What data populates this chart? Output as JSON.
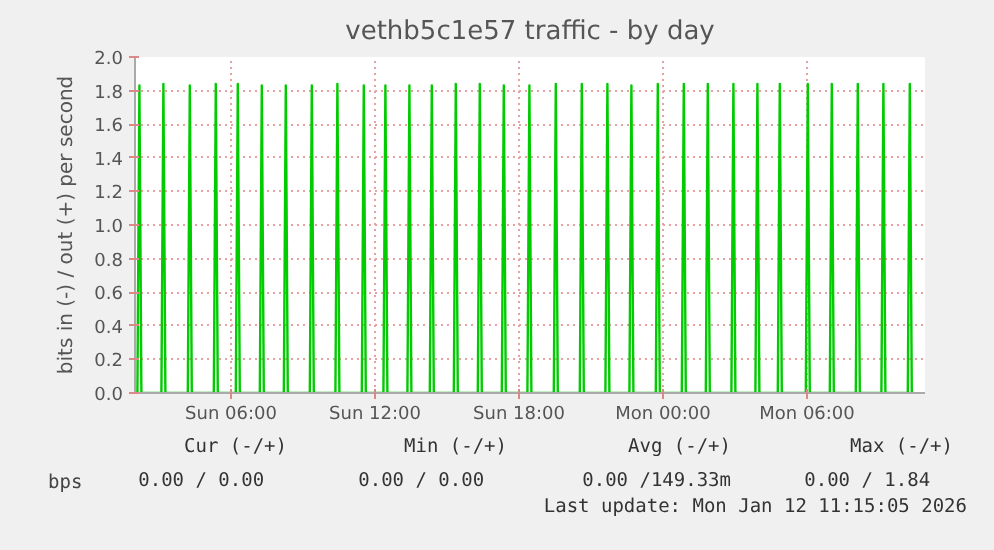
{
  "chart_data": {
    "type": "line",
    "title": "vethb5c1e57 traffic - by day",
    "ylabel": "bits in (-) / out (+) per second",
    "xlim": [
      "2026-01-11T02:00",
      "2026-01-12T10:55"
    ],
    "ylim": [
      0,
      2.0
    ],
    "xticks": [
      {
        "value": "2026-01-11T06:00",
        "label": "Sun 06:00"
      },
      {
        "value": "2026-01-11T12:00",
        "label": "Sun 12:00"
      },
      {
        "value": "2026-01-11T18:00",
        "label": "Sun 18:00"
      },
      {
        "value": "2026-01-12T00:00",
        "label": "Mon 00:00"
      },
      {
        "value": "2026-01-12T06:00",
        "label": "Mon 06:00"
      }
    ],
    "yticks": [
      {
        "value": 0,
        "label": "0.0"
      },
      {
        "value": 0.2,
        "label": "0.2"
      },
      {
        "value": 0.4,
        "label": "0.4"
      },
      {
        "value": 0.6,
        "label": "0.6"
      },
      {
        "value": 0.8,
        "label": "0.8"
      },
      {
        "value": 1.0,
        "label": "1.0"
      },
      {
        "value": 1.2,
        "label": "1.2"
      },
      {
        "value": 1.4,
        "label": "1.4"
      },
      {
        "value": 1.6,
        "label": "1.6"
      },
      {
        "value": 1.8,
        "label": "1.8"
      },
      {
        "value": 2.0,
        "label": "2.0"
      }
    ],
    "grid": true,
    "legend": "bottom left",
    "line_style": "solid",
    "series": [
      {
        "name": "bps",
        "color": "#00cc00",
        "x": [
          "2026-01-11T02:06",
          "2026-01-11T02:11",
          "2026-01-11T02:16",
          "2026-01-11T03:06",
          "2026-01-11T03:11",
          "2026-01-11T03:16",
          "2026-01-11T04:12",
          "2026-01-11T04:17",
          "2026-01-11T04:22",
          "2026-01-11T05:17",
          "2026-01-11T05:22",
          "2026-01-11T05:27",
          "2026-01-11T06:12",
          "2026-01-11T06:17",
          "2026-01-11T06:22",
          "2026-01-11T07:12",
          "2026-01-11T07:17",
          "2026-01-11T07:22",
          "2026-01-11T08:12",
          "2026-01-11T08:17",
          "2026-01-11T08:22",
          "2026-01-11T09:17",
          "2026-01-11T09:22",
          "2026-01-11T09:27",
          "2026-01-11T10:21",
          "2026-01-11T10:26",
          "2026-01-11T10:31",
          "2026-01-11T11:27",
          "2026-01-11T11:32",
          "2026-01-11T11:37",
          "2026-01-11T12:21",
          "2026-01-11T12:26",
          "2026-01-11T12:31",
          "2026-01-11T13:21",
          "2026-01-11T13:26",
          "2026-01-11T13:31",
          "2026-01-11T14:17",
          "2026-01-11T14:22",
          "2026-01-11T14:27",
          "2026-01-11T15:17",
          "2026-01-11T15:22",
          "2026-01-11T15:27",
          "2026-01-11T16:17",
          "2026-01-11T16:22",
          "2026-01-11T16:27",
          "2026-01-11T17:17",
          "2026-01-11T17:22",
          "2026-01-11T17:27",
          "2026-01-11T18:21",
          "2026-01-11T18:26",
          "2026-01-11T18:31",
          "2026-01-11T19:27",
          "2026-01-11T19:32",
          "2026-01-11T19:37",
          "2026-01-11T20:32",
          "2026-01-11T20:37",
          "2026-01-11T20:42",
          "2026-01-11T21:36",
          "2026-01-11T21:41",
          "2026-01-11T21:46",
          "2026-01-11T22:36",
          "2026-01-11T22:41",
          "2026-01-11T22:46",
          "2026-01-11T23:42",
          "2026-01-11T23:47",
          "2026-01-11T23:52",
          "2026-01-12T00:47",
          "2026-01-12T00:52",
          "2026-01-12T00:57",
          "2026-01-12T01:47",
          "2026-01-12T01:52",
          "2026-01-12T01:57",
          "2026-01-12T02:51",
          "2026-01-12T02:56",
          "2026-01-12T03:01",
          "2026-01-12T03:51",
          "2026-01-12T03:56",
          "2026-01-12T04:01",
          "2026-01-12T04:47",
          "2026-01-12T04:52",
          "2026-01-12T04:57",
          "2026-01-12T05:57",
          "2026-01-12T06:02",
          "2026-01-12T06:07",
          "2026-01-12T06:57",
          "2026-01-12T07:02",
          "2026-01-12T07:07",
          "2026-01-12T08:02",
          "2026-01-12T08:07",
          "2026-01-12T08:12",
          "2026-01-12T09:06",
          "2026-01-12T09:11",
          "2026-01-12T09:16",
          "2026-01-12T10:12",
          "2026-01-12T10:17",
          "2026-01-12T10:22"
        ],
        "values": [
          0,
          1.83,
          0,
          0,
          1.84,
          0,
          0,
          1.83,
          0,
          0,
          1.84,
          0,
          0,
          1.84,
          0,
          0,
          1.83,
          0,
          0,
          1.83,
          0,
          0,
          1.83,
          0,
          0,
          1.84,
          0,
          0,
          1.83,
          0,
          0,
          1.83,
          0,
          0,
          1.83,
          0,
          0,
          1.83,
          0,
          0,
          1.84,
          0,
          0,
          1.84,
          0,
          0,
          1.83,
          0,
          0,
          1.83,
          0,
          0,
          1.84,
          0,
          0,
          1.84,
          0,
          0,
          1.84,
          0,
          0,
          1.83,
          0,
          0,
          1.84,
          0,
          0,
          1.84,
          0,
          0,
          1.84,
          0,
          0,
          1.84,
          0,
          0,
          1.84,
          0,
          0,
          1.84,
          0,
          0,
          1.84,
          0,
          0,
          1.84,
          0,
          0,
          1.84,
          0,
          0,
          1.84,
          0,
          0,
          1.84,
          0
        ]
      }
    ],
    "annotations": [
      "Cur (-/+)",
      "Min (-/+)",
      "Avg (-/+)",
      "Max (-/+)",
      "0.00 /   0.00",
      "0.00 /   0.00",
      "0.00 /149.33m",
      "0.00 /   1.84",
      "Last update: Mon Jan 12 11:15:05 2026"
    ]
  }
}
